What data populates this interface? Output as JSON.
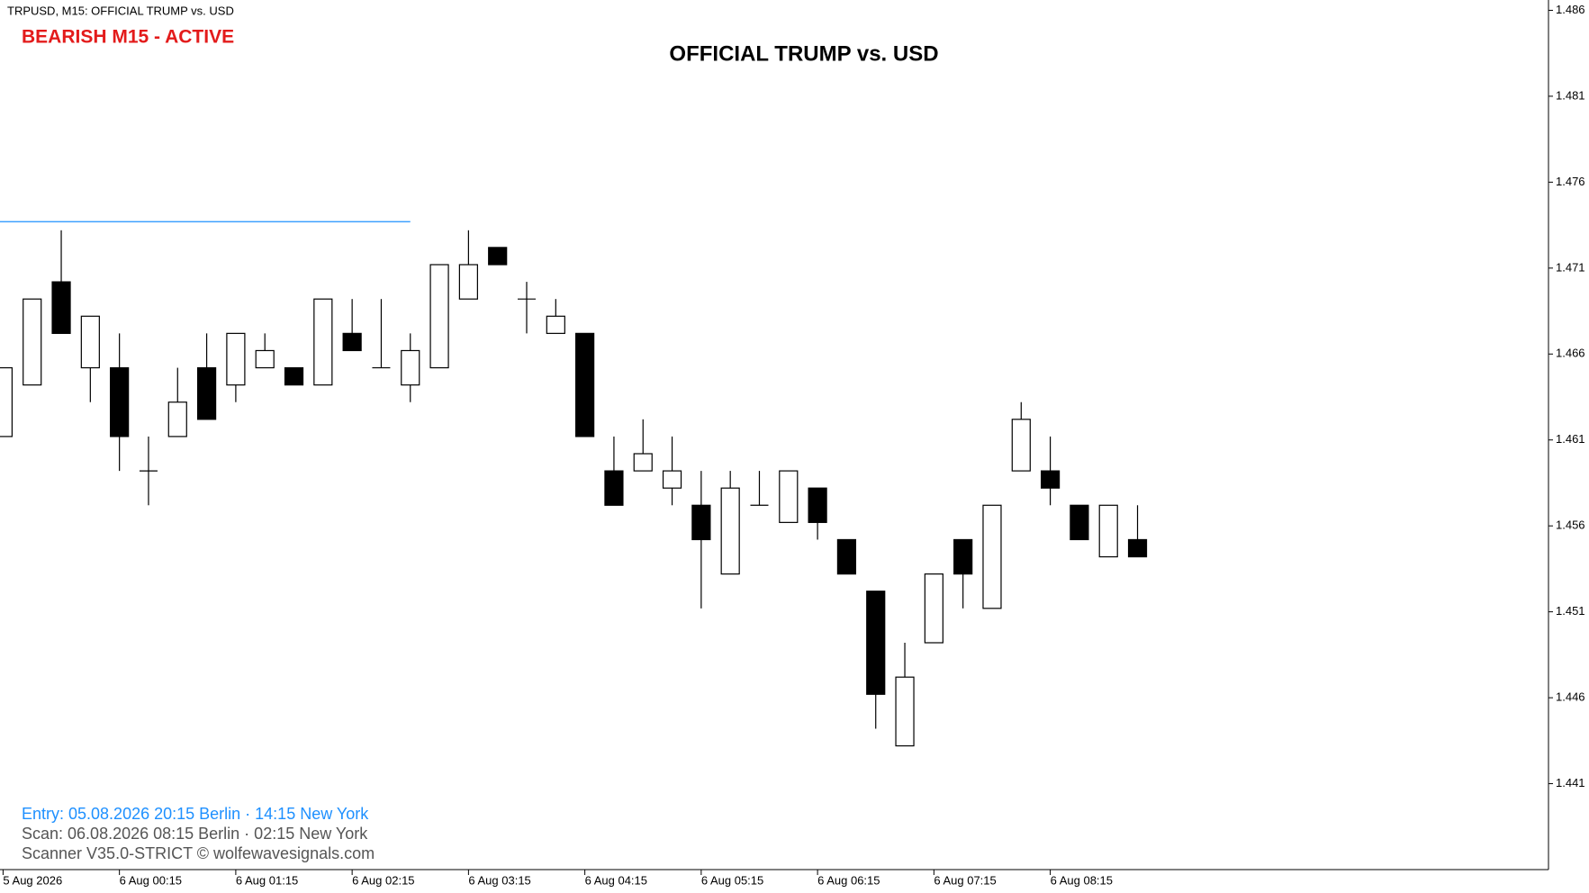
{
  "chart_data": {
    "type": "candlestick",
    "header": "TRPUSD, M15:  OFFICIAL TRUMP vs. USD",
    "status": "BEARISH M15 - ACTIVE",
    "title": "OFFICIAL TRUMP vs. USD",
    "notes": [
      "Entry: 05.08.2026  20:15 Berlin · 14:15 New York",
      "Scan:  06.08.2026  08:15 Berlin · 02:15 New York",
      "Scanner V35.0-STRICT   © wolfewavesignals.com"
    ],
    "categories": [
      "5 Aug 2026",
      null,
      null,
      null,
      "6 Aug 00:15",
      null,
      null,
      null,
      "6 Aug 01:15",
      null,
      null,
      null,
      "6 Aug 02:15",
      null,
      null,
      null,
      "6 Aug 03:15",
      null,
      null,
      null,
      "6 Aug 04:15",
      null,
      null,
      null,
      "6 Aug 05:15",
      null,
      null,
      null,
      "6 Aug 06:15",
      null,
      null,
      null,
      "6 Aug 07:15",
      null,
      null,
      null,
      "6 Aug 08:15",
      null,
      null,
      null
    ],
    "open": [
      1.4612,
      1.4642,
      1.4702,
      1.4652,
      1.4652,
      1.4592,
      1.4612,
      1.4652,
      1.4642,
      1.4652,
      1.4652,
      1.4642,
      1.4672,
      1.4652,
      1.4642,
      1.4652,
      1.4692,
      1.4722,
      1.4692,
      1.4672,
      1.4672,
      1.4592,
      1.4592,
      1.4582,
      1.4572,
      1.4532,
      1.4572,
      1.4562,
      1.4582,
      1.4552,
      1.4522,
      1.4432,
      1.4492,
      1.4552,
      1.4512,
      1.4592,
      1.4592,
      1.4572,
      1.4542,
      1.4552
    ],
    "high": [
      1.4652,
      1.4692,
      1.4732,
      1.4682,
      1.4672,
      1.4612,
      1.4652,
      1.4672,
      1.4672,
      1.4672,
      1.4652,
      1.4692,
      1.4692,
      1.4692,
      1.4672,
      1.4712,
      1.4732,
      1.4722,
      1.4702,
      1.4692,
      1.4672,
      1.4612,
      1.4622,
      1.4612,
      1.4592,
      1.4592,
      1.4592,
      1.4592,
      1.4582,
      1.4552,
      1.4522,
      1.4492,
      1.4532,
      1.4552,
      1.4572,
      1.4632,
      1.4612,
      1.4572,
      1.4572,
      1.4572
    ],
    "low": [
      1.4612,
      1.4642,
      1.4672,
      1.4632,
      1.4592,
      1.4572,
      1.4612,
      1.4622,
      1.4632,
      1.4652,
      1.4642,
      1.4642,
      1.4662,
      1.4652,
      1.4632,
      1.4652,
      1.4692,
      1.4712,
      1.4672,
      1.4672,
      1.4612,
      1.4572,
      1.4592,
      1.4572,
      1.4512,
      1.4532,
      1.4572,
      1.4562,
      1.4552,
      1.4532,
      1.4442,
      1.4432,
      1.4492,
      1.4512,
      1.4512,
      1.4592,
      1.4572,
      1.4552,
      1.4542,
      1.4542
    ],
    "close": [
      1.4652,
      1.4692,
      1.4672,
      1.4682,
      1.4612,
      1.4592,
      1.4632,
      1.4622,
      1.4672,
      1.4662,
      1.4642,
      1.4692,
      1.4662,
      1.4652,
      1.4662,
      1.4712,
      1.4712,
      1.4712,
      1.4692,
      1.4682,
      1.4612,
      1.4572,
      1.4602,
      1.4592,
      1.4552,
      1.4582,
      1.4572,
      1.4592,
      1.4562,
      1.4532,
      1.4462,
      1.4472,
      1.4532,
      1.4532,
      1.4572,
      1.4622,
      1.4582,
      1.4552,
      1.4572,
      1.4542
    ],
    "level": 1.4737,
    "level_color": "#1e90ff",
    "ylim": [
      1.436,
      1.4866
    ],
    "yticks": [
      1.486,
      1.481,
      1.476,
      1.471,
      1.466,
      1.461,
      1.456,
      1.451,
      1.446,
      1.441
    ]
  }
}
